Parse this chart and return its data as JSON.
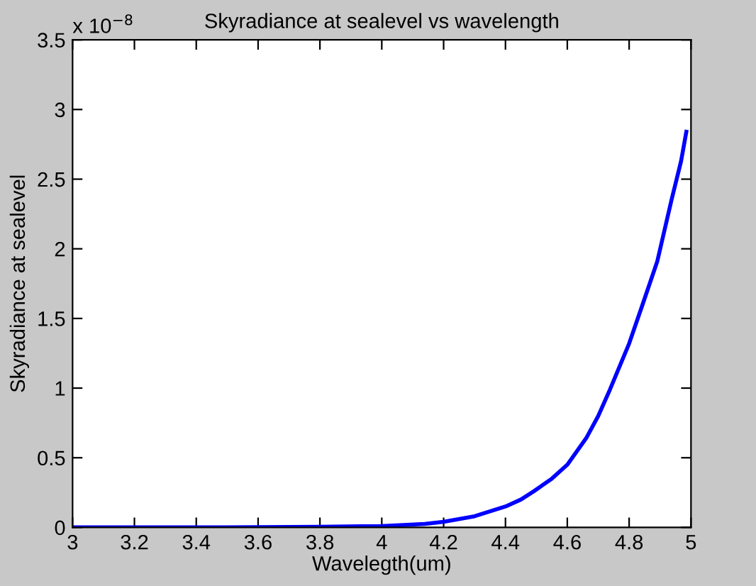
{
  "chart_data": {
    "type": "line",
    "title": "Skyradiance at sealevel vs wavelength",
    "xlabel": "Wavelegth(um)",
    "ylabel": "Skyradiance at sealevel",
    "annotations": [
      "x 10$^{−8}$"
    ],
    "series": [
      {
        "color": "#0000ff",
        "x": [
          3.0,
          3.5,
          3.8,
          4.0,
          4.139,
          4.2,
          4.3,
          4.4,
          4.45,
          4.492,
          4.55,
          4.6,
          4.661,
          4.7,
          4.738,
          4.8,
          4.845,
          4.891,
          4.937,
          4.968,
          4.985
        ],
        "values": [
          0.0,
          0.001,
          0.004,
          0.01,
          0.025,
          0.04,
          0.08,
          0.15,
          0.2,
          0.26,
          0.35,
          0.45,
          0.64,
          0.8,
          0.99,
          1.32,
          1.61,
          1.91,
          2.35,
          2.63,
          2.84
        ]
      }
    ],
    "xlim": [
      3,
      5
    ],
    "ylim": [
      0,
      3.5
    ],
    "xticks": [
      3,
      3.2,
      3.4,
      3.6,
      3.8,
      4,
      4.2,
      4.4,
      4.6,
      4.8,
      5
    ],
    "yticks": [
      0,
      0.5,
      1,
      1.5,
      2,
      2.5,
      3,
      3.5
    ],
    "grid": false,
    "legend": false
  }
}
